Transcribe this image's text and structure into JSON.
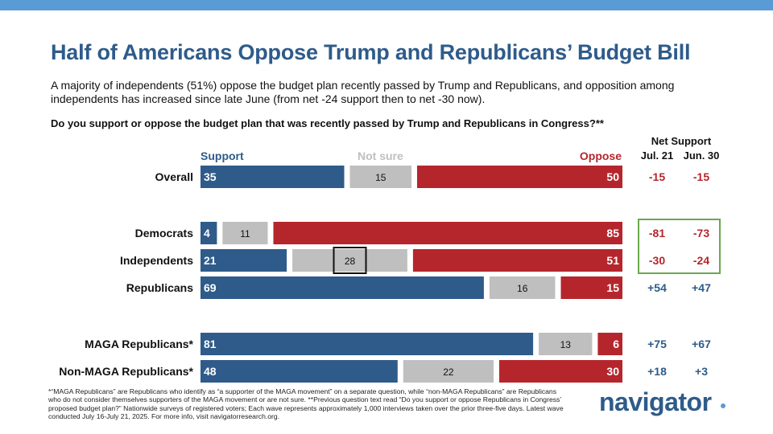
{
  "title": "Half of Americans Oppose Trump and Republicans’ Budget Bill",
  "subtitle": "A majority of independents (51%) oppose the budget plan recently passed by Trump and Republicans, and opposition among independents has increased since late June (from net -24 support then to net -30 now).",
  "question": "Do you support or oppose the budget plan that was recently passed by Trump and Republicans in Congress?**",
  "colors": {
    "support": "#2e5b8a",
    "not_sure": "#bfbfbf",
    "oppose": "#b5262c",
    "net_negative": "#b5262c",
    "net_positive": "#2e5b8a",
    "highlight_box": "#6aa84f",
    "accent_bar": "#5b9bd5"
  },
  "chart_data": {
    "type": "bar",
    "orientation": "horizontal-stacked-100",
    "series": [
      {
        "name": "Support",
        "values": [
          35,
          4,
          21,
          69,
          81,
          48
        ]
      },
      {
        "name": "Not sure",
        "values": [
          15,
          11,
          28,
          16,
          13,
          22
        ]
      },
      {
        "name": "Oppose",
        "values": [
          50,
          85,
          51,
          15,
          6,
          30
        ]
      }
    ],
    "categories": [
      "Overall",
      "Democrats",
      "Independents",
      "Republicans",
      "MAGA Republicans*",
      "Non-MAGA Republicans*"
    ],
    "highlighted": {
      "category": "Independents",
      "series": "Not sure"
    },
    "net_support": {
      "title": "Net Support",
      "columns": [
        "Jul. 21",
        "Jun. 30"
      ],
      "rows": [
        [
          "-15",
          "-15"
        ],
        [
          "-81",
          "-73"
        ],
        [
          "-30",
          "-24"
        ],
        [
          "+54",
          "+47"
        ],
        [
          "+75",
          "+67"
        ],
        [
          "+18",
          "+3"
        ]
      ],
      "highlighted_rows": [
        "Democrats",
        "Independents"
      ]
    }
  },
  "footnote": "*“MAGA Republicans” are Republicans who identify as “a supporter of the MAGA movement” on a separate question, while “non-MAGA Republicans” are Republicans who do not consider themselves supporters of the MAGA movement or are not sure. **Previous question text read “Do you support or oppose Republicans in Congress’ proposed budget plan?” Nationwide surveys of registered voters; Each wave represents approximately 1,000 interviews taken over the prior three-five days. Latest wave conducted July 16-July 21, 2025. For more info, visit navigatorresearch.org.",
  "brand": {
    "name": "navigator"
  }
}
